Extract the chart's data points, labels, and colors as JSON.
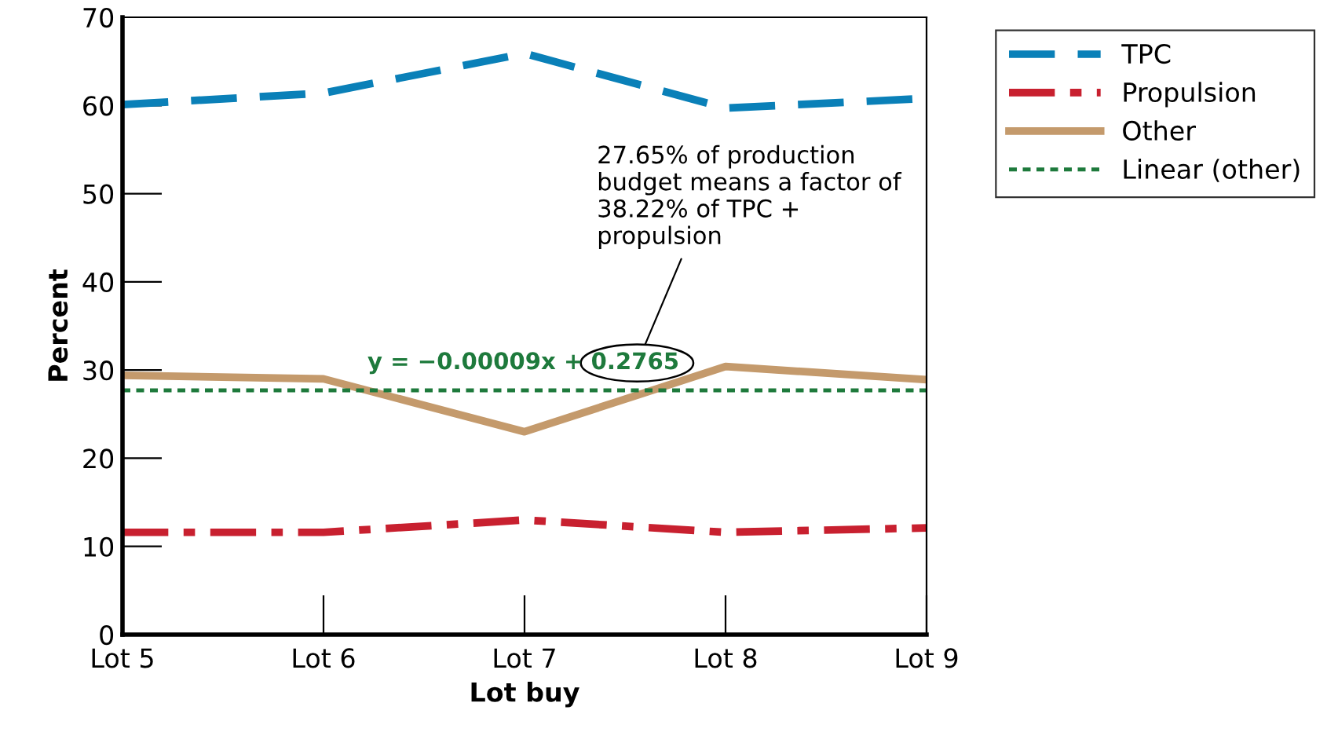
{
  "chart_data": {
    "type": "line",
    "xlabel": "Lot buy",
    "ylabel": "Percent",
    "categories": [
      "Lot 5",
      "Lot 6",
      "Lot 7",
      "Lot 8",
      "Lot 9"
    ],
    "series": [
      {
        "name": "TPC",
        "color": "#0a80b8",
        "values": [
          60.1,
          61.4,
          65.9,
          59.7,
          60.8
        ],
        "line_style": "dashed"
      },
      {
        "name": "Propulsion",
        "color": "#c8202f",
        "values": [
          11.6,
          11.6,
          13.0,
          11.6,
          12.1
        ],
        "line_style": "dashdot"
      },
      {
        "name": "Other",
        "color": "#c49a6c",
        "values": [
          29.4,
          29.0,
          23.0,
          30.4,
          28.9
        ],
        "line_style": "solid"
      },
      {
        "name": "Linear (other)",
        "color": "#1e7a3c",
        "values": [
          27.7,
          27.7,
          27.7,
          27.7,
          27.7
        ],
        "line_style": "dotted"
      }
    ],
    "ylim": [
      0,
      70
    ],
    "yticks": [
      0,
      10,
      20,
      30,
      40,
      50,
      60,
      70
    ],
    "grid": false,
    "legend": "top right",
    "marker": "none",
    "annotations": [
      "27.65% of production budget means a factor of 38.22% of TPC + propulsion",
      "y = −0.00009x + 0.2765"
    ]
  }
}
